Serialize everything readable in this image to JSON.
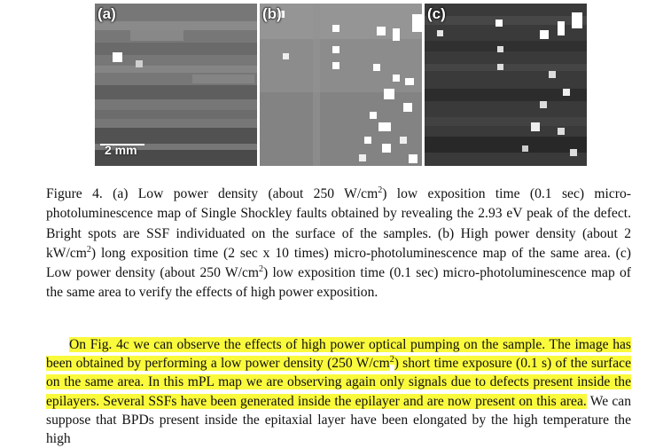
{
  "figure": {
    "panels": [
      {
        "label": "(a)"
      },
      {
        "label": "(b)"
      },
      {
        "label": "(c)"
      }
    ],
    "scale_bar_label": "2 mm"
  },
  "caption": {
    "p1": "Figure 4.  (a) Low power density (about 250 W/cm",
    "sup1": "2",
    "p2": ") low exposition time (0.1 sec) micro-photoluminescence map of Single Shockley faults obtained by revealing the 2.93 eV peak of the defect. Bright spots are SSF individuated on the surface of the samples. (b) High power density (about 2 kW/cm",
    "sup2": "2",
    "p3": ") long exposition time (2 sec x 10 times) micro-photoluminescence map of the same area. (c) Low power density (about 250 W/cm",
    "sup3": "2",
    "p4": ") low exposition time (0.1 sec) micro-photoluminescence map of the same area to verify the effects of high power exposition."
  },
  "body": {
    "hl1": "On Fig. 4c we can observe the effects of high power optical pumping on the sample. The image has been obtained by performing a low power density (250 W/cm",
    "sup": "2",
    "hl2": ") short time exposure (0.1 s) of the surface on the same area. In this mPL map we are observing again only signals due to defects present inside the epilayers. Several SSFs have been generated inside the epilayer and are now present on this area.",
    "rest": " We can suppose that BPDs present inside the epitaxial layer have been elongated by the high temperature the high"
  },
  "colors": {
    "highlight": "#fafa3c",
    "panel_a_bg": "#7a7a7a",
    "panel_b_bg": "#8c8c8c",
    "panel_c_bg": "#3c3c3c"
  }
}
